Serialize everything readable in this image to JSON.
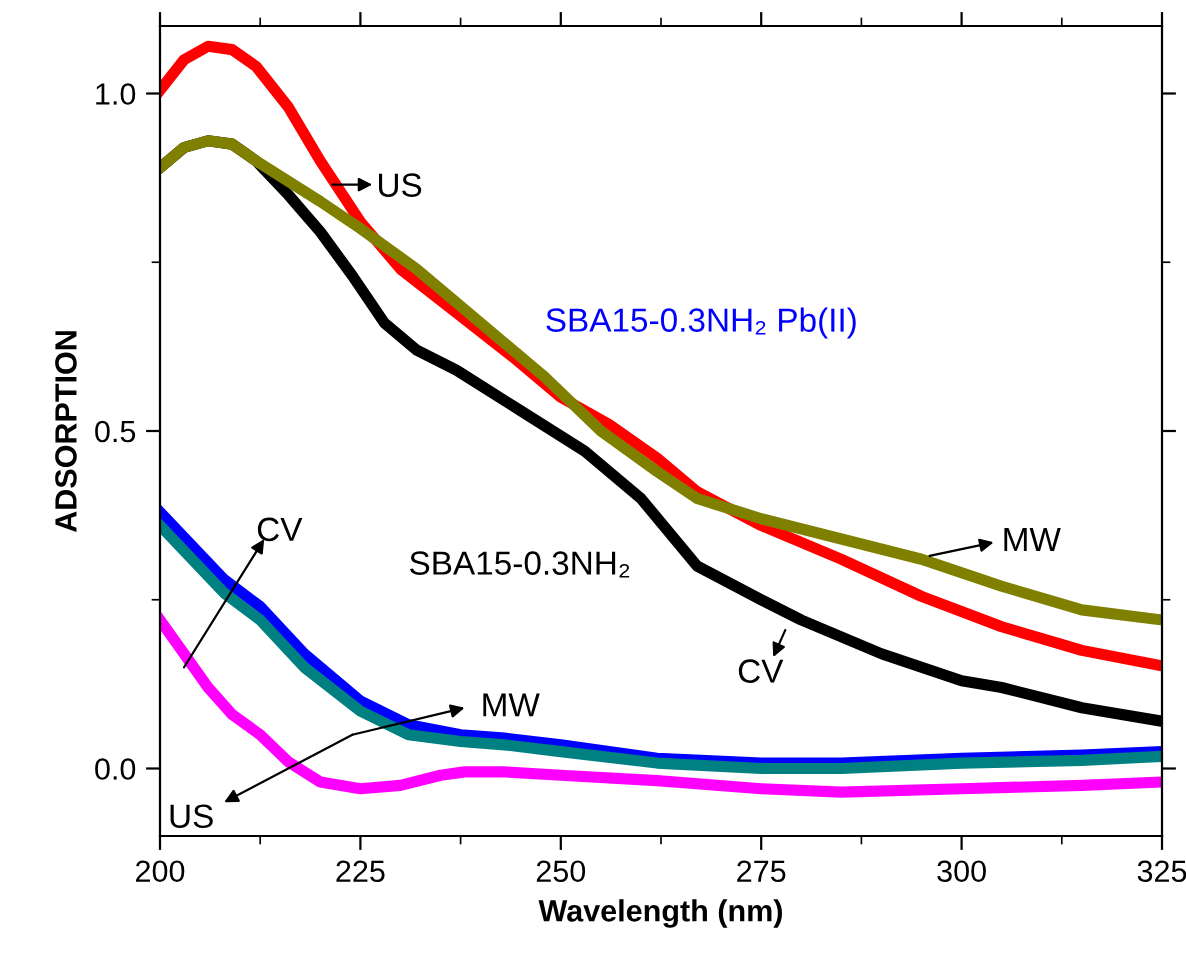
{
  "chart_data": {
    "type": "line",
    "xlabel": "Wavelength (nm)",
    "ylabel": "ADSORPTION",
    "xlim": [
      200,
      325
    ],
    "ylim": [
      -0.1,
      1.1
    ],
    "xticks": [
      200,
      225,
      250,
      275,
      300,
      325
    ],
    "yticks": [
      {
        "value": 0,
        "label": "0.0"
      },
      0.5,
      {
        "value": 1,
        "label": "1.0"
      }
    ],
    "grid": false,
    "legend": false,
    "marker": "none",
    "line_style": "solid",
    "series": [
      {
        "color": "#ff0000",
        "x": [
          200,
          203,
          206,
          209,
          212,
          216,
          220,
          225,
          230,
          237,
          244,
          250,
          256,
          262,
          267,
          275,
          285,
          295,
          305,
          315,
          325
        ],
        "values": [
          1.005,
          1.05,
          1.07,
          1.065,
          1.04,
          0.98,
          0.9,
          0.81,
          0.74,
          0.675,
          0.61,
          0.55,
          0.51,
          0.46,
          0.41,
          0.36,
          0.31,
          0.255,
          0.21,
          0.175,
          0.152
        ]
      },
      {
        "color": "#000000",
        "x": [
          200,
          203,
          206,
          209,
          212,
          216,
          220,
          224,
          228,
          232,
          237,
          245,
          253,
          260,
          267,
          275,
          280,
          290,
          300,
          305,
          315,
          325
        ],
        "values": [
          0.89,
          0.92,
          0.93,
          0.925,
          0.9,
          0.85,
          0.795,
          0.73,
          0.66,
          0.62,
          0.59,
          0.53,
          0.47,
          0.4,
          0.3,
          0.25,
          0.22,
          0.17,
          0.13,
          0.12,
          0.09,
          0.07
        ]
      },
      {
        "color": "#808000",
        "x": [
          200,
          203,
          206,
          209,
          212,
          216,
          220,
          225,
          232,
          240,
          248,
          255,
          262,
          267,
          275,
          285,
          295,
          305,
          315,
          325
        ],
        "values": [
          0.89,
          0.92,
          0.93,
          0.925,
          0.9,
          0.87,
          0.84,
          0.8,
          0.74,
          0.66,
          0.58,
          0.5,
          0.44,
          0.4,
          0.37,
          0.34,
          0.31,
          0.27,
          0.235,
          0.22
        ]
      },
      {
        "color": "#0000ff",
        "x": [
          200,
          204,
          208,
          212.5,
          218,
          225,
          231,
          237.5,
          243,
          250,
          262,
          275,
          285,
          300,
          315,
          325
        ],
        "values": [
          0.38,
          0.33,
          0.28,
          0.24,
          0.17,
          0.1,
          0.065,
          0.05,
          0.045,
          0.035,
          0.015,
          0.008,
          0.008,
          0.015,
          0.02,
          0.025
        ]
      },
      {
        "color": "#008080",
        "x": [
          200,
          204,
          208,
          212.5,
          218,
          225,
          231,
          237.5,
          243,
          250,
          262,
          275,
          285,
          300,
          315,
          325
        ],
        "values": [
          0.36,
          0.31,
          0.26,
          0.22,
          0.15,
          0.085,
          0.05,
          0.04,
          0.035,
          0.025,
          0.008,
          0.0,
          0.0,
          0.008,
          0.012,
          0.018
        ]
      },
      {
        "color": "#ff00ff",
        "x": [
          200,
          203,
          206,
          209,
          212.5,
          216,
          220,
          225,
          230,
          235,
          238,
          243,
          250,
          262,
          275,
          285,
          300,
          315,
          325
        ],
        "values": [
          0.22,
          0.17,
          0.12,
          0.08,
          0.05,
          0.01,
          -0.02,
          -0.03,
          -0.025,
          -0.01,
          -0.005,
          -0.005,
          -0.01,
          -0.018,
          -0.03,
          -0.035,
          -0.03,
          -0.025,
          -0.02
        ]
      }
    ],
    "annotations": [
      "US",
      "SBA15-0.3NH₂ Pb(II)",
      "MW",
      "CV",
      {
        "text": "CV",
        "x": 203,
        "y": 0.15
      },
      "SBA15-0.3NH₂",
      "MW",
      "US"
    ]
  }
}
